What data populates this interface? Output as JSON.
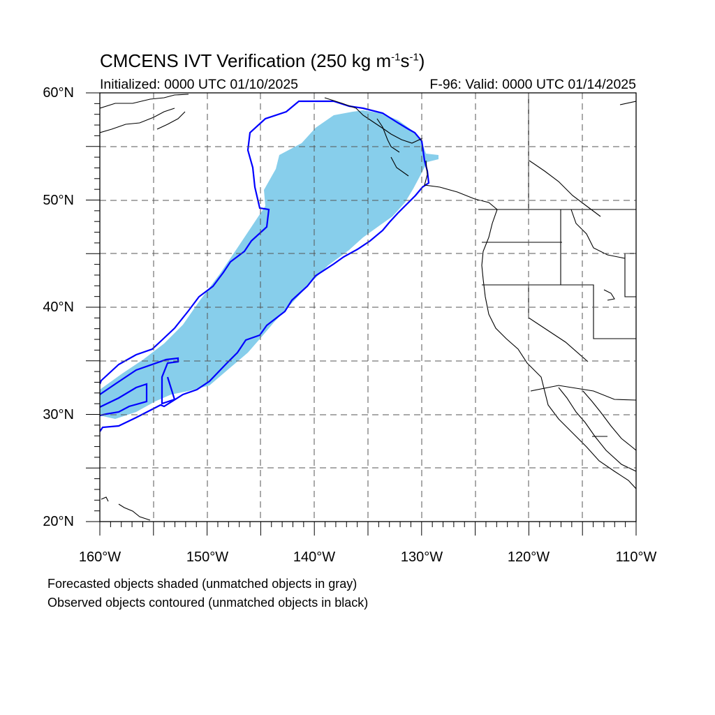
{
  "title": {
    "main": "CMCENS IVT Verification (250 kg m",
    "sup1": "-1",
    "mid": "s",
    "sup2": "-1",
    "end": ")"
  },
  "subtitle": {
    "left": "Initialized: 0000 UTC 01/10/2025",
    "right": "F-96: Valid: 0000 UTC 01/14/2025"
  },
  "axes": {
    "lat_labels": [
      "60°N",
      "50°N",
      "40°N",
      "30°N",
      "20°N"
    ],
    "lon_labels": [
      "160°W",
      "150°W",
      "140°W",
      "130°W",
      "120°W",
      "110°W"
    ],
    "lat_range": [
      20,
      60
    ],
    "lon_range": [
      -160,
      -110
    ],
    "grid": "dashed every 5°"
  },
  "notes": {
    "line1": "Forecasted objects shaded (unmatched objects in gray)",
    "line2": "Observed objects contoured (unmatched objects in black)"
  },
  "colors": {
    "forecast_fill": "#87ceeb",
    "observed_contour": "#0000ff",
    "coastline": "#000000",
    "grid": "#555555"
  }
}
